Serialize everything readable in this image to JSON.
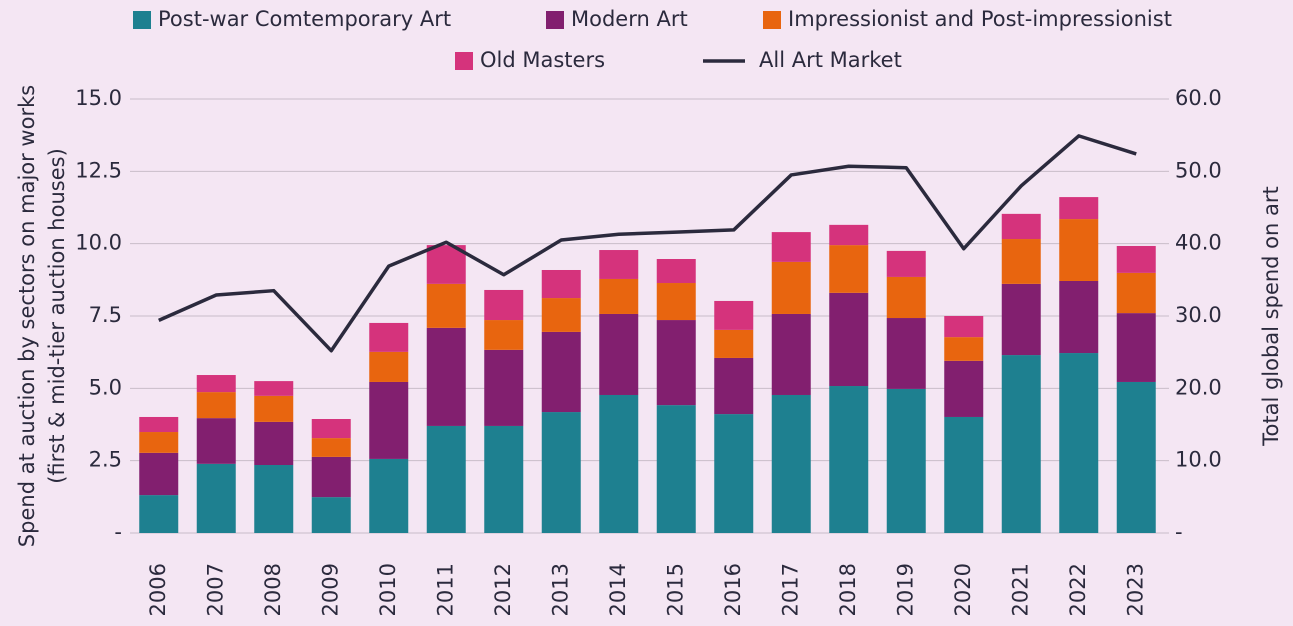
{
  "chart_data": {
    "type": "bar",
    "categories": [
      "2006",
      "2007",
      "2008",
      "2009",
      "2010",
      "2011",
      "2012",
      "2013",
      "2014",
      "2015",
      "2016",
      "2017",
      "2018",
      "2019",
      "2020",
      "2021",
      "2022",
      "2023"
    ],
    "series": [
      {
        "name": "Post-war Comtemporary Art",
        "color": "#1e8090",
        "values": [
          1.31,
          2.39,
          2.35,
          1.24,
          2.56,
          3.7,
          3.7,
          4.18,
          4.77,
          4.42,
          4.11,
          4.77,
          5.08,
          4.98,
          4.01,
          6.15,
          6.22,
          5.22
        ]
      },
      {
        "name": "Modern Art",
        "color": "#821f6f",
        "values": [
          1.46,
          1.58,
          1.49,
          1.39,
          2.66,
          3.39,
          2.63,
          2.77,
          2.8,
          2.94,
          1.94,
          2.8,
          3.22,
          2.45,
          1.94,
          2.46,
          2.49,
          2.38
        ]
      },
      {
        "name": "Impressionist and Post-impressionist",
        "color": "#e8650f",
        "values": [
          0.72,
          0.9,
          0.9,
          0.65,
          1.04,
          1.52,
          1.03,
          1.17,
          1.21,
          1.28,
          0.97,
          1.8,
          1.65,
          1.42,
          0.82,
          1.55,
          2.14,
          1.39
        ]
      },
      {
        "name": "Old Masters",
        "color": "#d5337c",
        "values": [
          0.52,
          0.59,
          0.51,
          0.66,
          1.0,
          1.34,
          1.04,
          0.97,
          1.0,
          0.83,
          1.0,
          1.03,
          0.7,
          0.9,
          0.73,
          0.87,
          0.76,
          0.93
        ]
      },
      {
        "name": "All Art Market",
        "color": "#2b2a3d",
        "type": "line",
        "axis": "y2",
        "values": [
          29.4,
          32.9,
          33.5,
          25.2,
          36.9,
          40.2,
          35.7,
          40.5,
          41.3,
          41.6,
          41.9,
          49.5,
          50.7,
          50.5,
          39.3,
          48.0,
          54.9,
          52.4
        ]
      }
    ],
    "ylabel": [
      "Spend at auction by sectors on major works",
      "(first & mid-tier auction houses)"
    ],
    "y2label": "Total global spend on art",
    "ylim": [
      0,
      15
    ],
    "yticks": [
      {
        "value": 0,
        "label": "-"
      },
      2.5,
      {
        "value": 5,
        "label": "5.0"
      },
      7.5,
      {
        "value": 10,
        "label": "10.0"
      },
      12.5,
      {
        "value": 15,
        "label": "15.0"
      }
    ],
    "y2lim": [
      0,
      60
    ],
    "y2ticks": [
      {
        "value": 0,
        "label": "-"
      },
      {
        "value": 10,
        "label": "10.0"
      },
      {
        "value": 20,
        "label": "20.0"
      },
      {
        "value": 30,
        "label": "30.0"
      },
      {
        "value": 40,
        "label": "40.0"
      },
      {
        "value": 50,
        "label": "50.0"
      },
      {
        "value": 60,
        "label": "60.0"
      }
    ],
    "grid": true,
    "stacked": true
  }
}
